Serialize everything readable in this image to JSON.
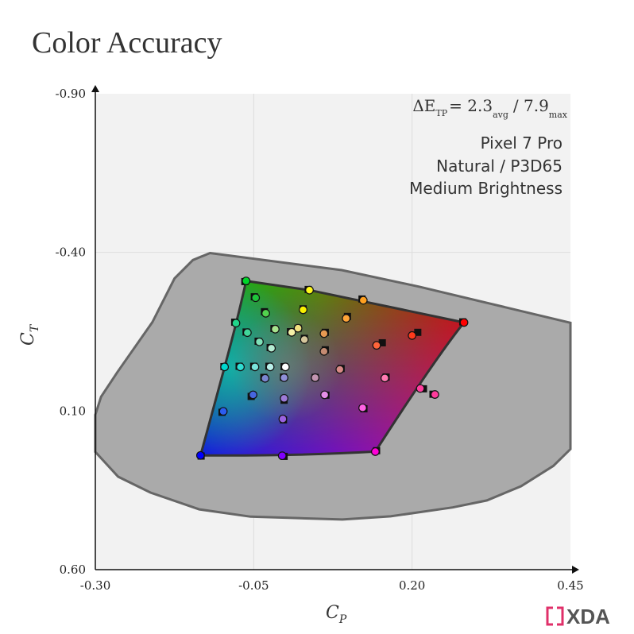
{
  "title": "Color Accuracy",
  "annotation": {
    "delta_symbol": "ΔE",
    "delta_sub": "TP",
    "eq": "= 2.3",
    "avg_label": "avg",
    "sep": "/ 7.9",
    "max_label": "max",
    "lines": [
      "Pixel 7 Pro",
      "Natural / P3D65",
      "Medium Brightness"
    ]
  },
  "logo": "XDA",
  "chart_data": {
    "type": "scatter",
    "title": "Color Accuracy",
    "xlabel_main": "C",
    "xlabel_sub": "P",
    "ylabel_main": "C",
    "ylabel_sub": "T",
    "xlim": [
      -0.3,
      0.45
    ],
    "ylim": [
      0.6,
      -0.9
    ],
    "x_ticks": [
      -0.3,
      -0.05,
      0.2,
      0.45
    ],
    "x_tick_labels": [
      "-0.30",
      "-0.05",
      "0.20",
      "0.45"
    ],
    "y_ticks": [
      -0.9,
      -0.4,
      0.1,
      0.6
    ],
    "y_tick_labels": [
      "-0.90",
      "-0.40",
      "0.10",
      "0.60"
    ],
    "grid": true,
    "colors": {
      "plot_bg": "#f2f2f2",
      "locus": "#aaaaaa",
      "locus_stroke": "#666666",
      "gamut_stroke": "#333333"
    },
    "locus_outline": [
      [
        -0.119,
        -0.398
      ],
      [
        0.089,
        -0.344
      ],
      [
        0.211,
        -0.292
      ],
      [
        0.45,
        -0.178
      ],
      [
        0.45,
        0.22
      ],
      [
        0.423,
        0.273
      ],
      [
        0.372,
        0.337
      ],
      [
        0.318,
        0.382
      ],
      [
        0.264,
        0.404
      ],
      [
        0.166,
        0.432
      ],
      [
        0.09,
        0.442
      ],
      [
        0.01,
        0.437
      ],
      [
        -0.055,
        0.433
      ],
      [
        -0.136,
        0.41
      ],
      [
        -0.213,
        0.357
      ],
      [
        -0.264,
        0.307
      ],
      [
        -0.3,
        0.229
      ],
      [
        -0.3,
        0.112
      ],
      [
        -0.291,
        0.055
      ],
      [
        -0.265,
        -0.023
      ],
      [
        -0.21,
        -0.18
      ],
      [
        -0.175,
        -0.318
      ],
      [
        -0.146,
        -0.376
      ]
    ],
    "gamut": {
      "green": [
        -0.062,
        -0.31
      ],
      "yellow": [
        0.038,
        -0.281
      ],
      "red": [
        0.282,
        -0.179
      ],
      "blue": [
        -0.134,
        0.24
      ],
      "magenta": [
        0.142,
        0.228
      ],
      "cyan_side": [
        [
          -0.079,
          -0.157
        ],
        [
          -0.096,
          -0.039
        ]
      ],
      "blue_magenta_ctrl": [
        0.018,
        0.242
      ],
      "red_magenta_ctrl": [
        0.236,
        -0.064
      ]
    },
    "points": [
      {
        "x": -0.062,
        "y": -0.31,
        "color": "#00d42a",
        "tx": -0.064,
        "ty": -0.308
      },
      {
        "x": -0.047,
        "y": -0.257,
        "color": "#1fc43a",
        "tx": -0.049,
        "ty": -0.26
      },
      {
        "x": -0.031,
        "y": -0.208,
        "color": "#52d24e",
        "tx": -0.033,
        "ty": -0.213
      },
      {
        "x": -0.078,
        "y": -0.177,
        "color": "#20d58a",
        "tx": -0.08,
        "ty": -0.18
      },
      {
        "x": -0.06,
        "y": -0.147,
        "color": "#41d69a",
        "tx": -0.062,
        "ty": -0.149
      },
      {
        "x": -0.041,
        "y": -0.118,
        "color": "#7fe0b8",
        "tx": -0.043,
        "ty": -0.12
      },
      {
        "x": -0.016,
        "y": -0.158,
        "color": "#a7e48e",
        "tx": -0.018,
        "ty": -0.16
      },
      {
        "x": -0.022,
        "y": -0.098,
        "color": "#b6edd3",
        "tx": -0.024,
        "ty": -0.1
      },
      {
        "x": -0.096,
        "y": -0.039,
        "color": "#00d9cf",
        "tx": -0.097,
        "ty": -0.04
      },
      {
        "x": -0.071,
        "y": -0.039,
        "color": "#30dcd2",
        "tx": -0.073,
        "ty": -0.041
      },
      {
        "x": -0.048,
        "y": -0.039,
        "color": "#79e4dc",
        "tx": -0.05,
        "ty": -0.041
      },
      {
        "x": -0.024,
        "y": -0.039,
        "color": "#b9f0ea",
        "tx": -0.026,
        "ty": -0.041
      },
      {
        "x": 0.0,
        "y": -0.039,
        "color": "#ffffff",
        "tx": -0.002,
        "ty": -0.04
      },
      {
        "x": 0.038,
        "y": -0.281,
        "color": "#fffa1c",
        "tx": 0.036,
        "ty": -0.283
      },
      {
        "x": 0.028,
        "y": -0.219,
        "color": "#f8f000",
        "tx": 0.028,
        "ty": -0.222
      },
      {
        "x": 0.02,
        "y": -0.161,
        "color": "#f0e080",
        "tx": 0.02,
        "ty": -0.161
      },
      {
        "x": 0.01,
        "y": -0.148,
        "color": "#f4f0a8",
        "tx": 0.008,
        "ty": -0.15
      },
      {
        "x": 0.03,
        "y": -0.125,
        "color": "#d6c79c",
        "tx": 0.03,
        "ty": -0.129
      },
      {
        "x": 0.123,
        "y": -0.249,
        "color": "#ffa020",
        "tx": 0.121,
        "ty": -0.253
      },
      {
        "x": 0.096,
        "y": -0.192,
        "color": "#ffa438",
        "tx": 0.098,
        "ty": -0.198
      },
      {
        "x": 0.061,
        "y": -0.144,
        "color": "#e79a52",
        "tx": 0.063,
        "ty": -0.148
      },
      {
        "x": 0.061,
        "y": -0.088,
        "color": "#c58b72",
        "tx": 0.063,
        "ty": -0.093
      },
      {
        "x": 0.282,
        "y": -0.179,
        "color": "#ff0000",
        "tx": 0.28,
        "ty": -0.181
      },
      {
        "x": 0.2,
        "y": -0.138,
        "color": "#ff3a1c",
        "tx": 0.209,
        "ty": -0.148
      },
      {
        "x": 0.144,
        "y": -0.107,
        "color": "#ff643a",
        "tx": 0.153,
        "ty": -0.115
      },
      {
        "x": 0.086,
        "y": -0.031,
        "color": "#d88a86",
        "tx": 0.088,
        "ty": -0.034
      },
      {
        "x": 0.047,
        "y": -0.005,
        "color": "#c294b0",
        "tx": 0.047,
        "ty": -0.006
      },
      {
        "x": 0.157,
        "y": -0.004,
        "color": "#ff7ab2",
        "tx": 0.159,
        "ty": -0.007
      },
      {
        "x": 0.213,
        "y": 0.029,
        "color": "#ff3e9e",
        "tx": 0.218,
        "ty": 0.03
      },
      {
        "x": 0.236,
        "y": 0.048,
        "color": "#ff3c9c",
        "tx": 0.233,
        "ty": 0.047
      },
      {
        "x": 0.142,
        "y": 0.228,
        "color": "#ff00d8",
        "tx": 0.144,
        "ty": 0.225
      },
      {
        "x": 0.122,
        "y": 0.09,
        "color": "#ff62e4",
        "tx": 0.124,
        "ty": 0.093
      },
      {
        "x": 0.062,
        "y": 0.049,
        "color": "#e58fe8",
        "tx": 0.064,
        "ty": 0.05
      },
      {
        "x": -0.002,
        "y": -0.005,
        "color": "#8f8fd8",
        "tx": -0.003,
        "ty": -0.007
      },
      {
        "x": -0.032,
        "y": -0.003,
        "color": "#7a86d0",
        "tx": -0.034,
        "ty": -0.006
      },
      {
        "x": -0.051,
        "y": 0.049,
        "color": "#4666e0",
        "tx": -0.054,
        "ty": 0.054
      },
      {
        "x": -0.002,
        "y": 0.06,
        "color": "#9d7ad8",
        "tx": -0.002,
        "ty": 0.066
      },
      {
        "x": -0.004,
        "y": 0.125,
        "color": "#9b62e0",
        "tx": -0.003,
        "ty": 0.128
      },
      {
        "x": -0.098,
        "y": 0.101,
        "color": "#2b5df0",
        "tx": -0.1,
        "ty": 0.104
      },
      {
        "x": -0.134,
        "y": 0.24,
        "color": "#0000ff",
        "tx": -0.133,
        "ty": 0.242
      },
      {
        "x": -0.005,
        "y": 0.241,
        "color": "#8000ff",
        "tx": -0.002,
        "ty": 0.243
      }
    ]
  }
}
